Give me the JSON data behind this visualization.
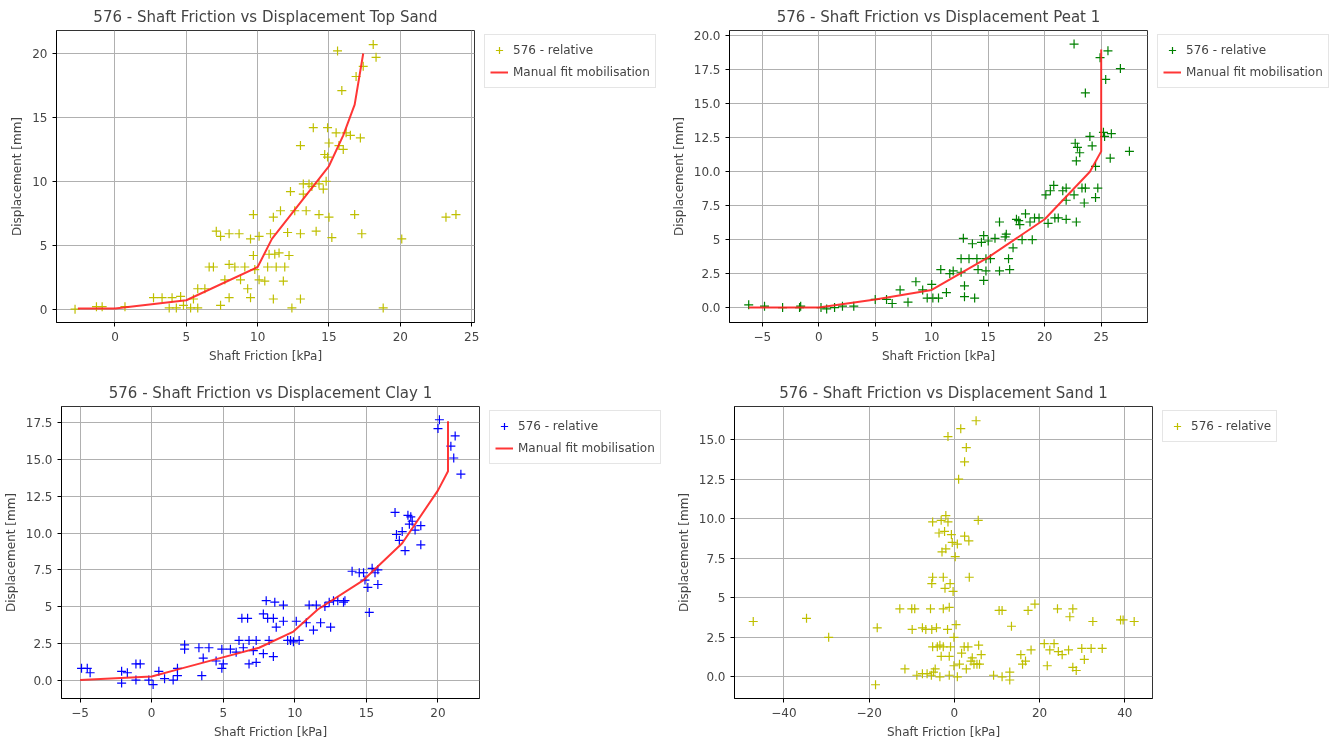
{
  "chart_data": [
    {
      "type": "scatter",
      "title": "576 - Shaft Friction vs Displacement Top Sand",
      "xlabel": "Shaft Friction [kPa]",
      "ylabel": "Displacement [mm]",
      "xlim": [
        -4.1,
        25.2
      ],
      "ylim": [
        -1.04,
        21.8
      ],
      "xticks": [
        0,
        5,
        10,
        15,
        20,
        25
      ],
      "yticks": [
        0,
        5,
        10,
        15,
        20
      ],
      "grid": true,
      "legend": "right",
      "series": [
        {
          "name": "576 - relative",
          "marker": "cross",
          "color": "#bfbf00",
          "x": [
            -2.8,
            -1.3,
            -0.9,
            0.7,
            2.7,
            3.3,
            4.0,
            4.6,
            3.8,
            4.3,
            4.8,
            5.3,
            5.8,
            5.5,
            5.8,
            6.3,
            6.6,
            6.9,
            7.1,
            7.4,
            7.4,
            7.7,
            8.0,
            8.7,
            8.0,
            8.0,
            8.4,
            8.8,
            9.1,
            9.3,
            9.5,
            9.5,
            9.7,
            9.7,
            9.8,
            10.1,
            10.1,
            10.5,
            10.8,
            10.7,
            10.9,
            11.1,
            11.1,
            11.2,
            11.3,
            11.5,
            11.6,
            11.8,
            11.9,
            12.1,
            12.2,
            12.4,
            12.3,
            12.6,
            13.0,
            13.0,
            13.0,
            13.2,
            13.2,
            13.4,
            13.6,
            13.8,
            13.9,
            14.1,
            14.3,
            14.3,
            14.6,
            14.7,
            14.8,
            14.9,
            14.9,
            15.0,
            15.0,
            15.2,
            15.5,
            15.6,
            15.7,
            15.9,
            16.0,
            16.2,
            16.5,
            16.8,
            16.9,
            17.2,
            17.3,
            17.4,
            18.1,
            18.3,
            18.8,
            20.1,
            23.2,
            23.9
          ],
          "values": [
            0,
            0.2,
            0.2,
            0.2,
            0.9,
            0.9,
            0.9,
            1.0,
            0.1,
            0.1,
            0.3,
            0.1,
            0.1,
            0.8,
            1.6,
            1.6,
            3.3,
            3.3,
            6.1,
            5.7,
            0.3,
            2.3,
            5.9,
            5.9,
            0.9,
            3.5,
            3.3,
            2.3,
            3.3,
            1.6,
            0.9,
            5.5,
            7.4,
            4.2,
            3.1,
            5.7,
            2.3,
            2.2,
            4.3,
            3.3,
            5.9,
            7.2,
            0.8,
            4.3,
            3.3,
            4.4,
            7.7,
            2.2,
            3.3,
            6.0,
            4.2,
            0.1,
            9.2,
            7.7,
            5.9,
            0.8,
            12.8,
            9.0,
            9.8,
            7.7,
            9.8,
            9.6,
            14.2,
            6.1,
            7.4,
            9.8,
            9.4,
            12.1,
            10.0,
            11.9,
            14.2,
            13.0,
            7.2,
            5.6,
            13.8,
            20.2,
            12.8,
            17.1,
            12.5,
            13.8,
            13.6,
            7.4,
            18.2,
            13.4,
            5.9,
            19.0,
            20.7,
            19.7,
            0.1,
            5.5,
            7.2,
            7.4
          ]
        },
        {
          "name": "Manual fit mobilisation",
          "type": "line",
          "color": "#ff2020",
          "x": [
            -2.6,
            0,
            5,
            10,
            11,
            15,
            16,
            16.8,
            17.4
          ],
          "values": [
            0.05,
            0.05,
            0.7,
            3.3,
            5.5,
            11.2,
            13.6,
            16,
            20
          ]
        }
      ]
    },
    {
      "type": "scatter",
      "title": "576 - Shaft Friction vs Displacement Peat 1",
      "xlabel": "Shaft Friction [kPa]",
      "ylabel": "Displacement [mm]",
      "xlim": [
        -7.9,
        29.1
      ],
      "ylim": [
        -1.1,
        20.4
      ],
      "xticks": [
        {
          "value": -5,
          "label": "−5"
        },
        0,
        5,
        10,
        15,
        20,
        25
      ],
      "yticks": [
        {
          "value": 0,
          "label": "0.0"
        },
        2.5,
        5.0,
        7.5,
        {
          "value": 10,
          "label": "10.0"
        },
        12.5,
        {
          "value": 15,
          "label": "15.0"
        },
        17.5,
        {
          "value": 20,
          "label": "20.0"
        }
      ],
      "grid": true,
      "legend": "right",
      "series": [
        {
          "name": "576 - relative",
          "marker": "cross",
          "color": "#008000",
          "x": [
            -6.2,
            -4.8,
            -3.2,
            -1.7,
            -1.6,
            0.2,
            0.7,
            1.4,
            2.1,
            3.1,
            5.0,
            6.0,
            6.5,
            7.2,
            7.9,
            8.6,
            9.2,
            9.6,
            10.0,
            10.1,
            10.6,
            10.8,
            11.3,
            11.6,
            11.9,
            12.6,
            12.6,
            12.8,
            12.9,
            12.9,
            13.3,
            13.6,
            13.8,
            14.0,
            14.1,
            14.4,
            14.6,
            14.6,
            14.8,
            14.8,
            15.0,
            15.2,
            15.6,
            16.0,
            16.0,
            16.5,
            16.6,
            16.8,
            16.9,
            17.2,
            17.5,
            17.7,
            17.8,
            18.0,
            18.3,
            18.7,
            18.9,
            19.1,
            19.5,
            20.1,
            20.3,
            20.5,
            20.8,
            20.9,
            21.2,
            21.6,
            21.9,
            21.9,
            21.9,
            22.6,
            22.6,
            22.7,
            22.8,
            22.8,
            22.9,
            23.1,
            23.3,
            23.5,
            23.6,
            23.6,
            24.0,
            24.2,
            24.5,
            24.5,
            24.7,
            24.9,
            25.2,
            25.3,
            25.4,
            25.6,
            25.8,
            25.9,
            26.7,
            27.5
          ],
          "values": [
            0.2,
            0.1,
            0,
            0,
            0.1,
            0,
            -0.1,
            0,
            0.1,
            0.1,
            0.6,
            0.6,
            0.3,
            1.3,
            0.4,
            1.9,
            1.3,
            0.7,
            1.7,
            0.7,
            0.7,
            2.8,
            1.1,
            2.5,
            2.7,
            2.6,
            3.6,
            5.1,
            1.6,
            0.8,
            3.6,
            4.7,
            0.7,
            3.6,
            2.8,
            4.8,
            2.0,
            5.3,
            3.6,
            2.7,
            4.9,
            3.6,
            5.1,
            6.3,
            2.7,
            5.2,
            5.4,
            3.6,
            2.8,
            4.4,
            6.5,
            6.4,
            6.1,
            5.0,
            6.9,
            6.3,
            5.0,
            6.6,
            6.6,
            8.3,
            6.2,
            8.6,
            9.0,
            6.6,
            6.6,
            8.6,
            7.9,
            8.8,
            6.5,
            8.3,
            19.4,
            12.1,
            10.8,
            6.3,
            11.8,
            11.4,
            8.8,
            7.7,
            15.8,
            8.8,
            12.6,
            11.9,
            8.1,
            10.4,
            8.8,
            18.4,
            12.9,
            12.6,
            16.8,
            18.9,
            11.0,
            12.8,
            17.6,
            11.5
          ]
        },
        {
          "name": "Manual fit mobilisation",
          "type": "line",
          "color": "#ff2020",
          "x": [
            -6.2,
            0,
            5,
            10,
            15,
            20,
            24,
            25,
            25
          ],
          "values": [
            0,
            0,
            0.6,
            1.3,
            3.7,
            6.5,
            10,
            11.5,
            19
          ]
        }
      ]
    },
    {
      "type": "scatter",
      "title": "576 - Shaft Friction vs Displacement Clay 1",
      "xlabel": "Shaft Friction [kPa]",
      "ylabel": "Displacement [mm]",
      "xlim": [
        -6.3,
        22.9
      ],
      "ylim": [
        -1.25,
        18.6
      ],
      "xticks": [
        {
          "value": -5,
          "label": "−5"
        },
        0,
        5,
        10,
        15,
        20
      ],
      "yticks": [
        {
          "value": 0,
          "label": "0.0"
        },
        2.5,
        5.0,
        7.5,
        {
          "value": 10,
          "label": "10.0"
        },
        12.5,
        {
          "value": 15,
          "label": "15.0"
        },
        17.5
      ],
      "grid": true,
      "legend": "right",
      "series": [
        {
          "name": "576 - relative",
          "marker": "cross",
          "color": "#0000ff",
          "x": [
            -4.9,
            -4.5,
            -4.3,
            -2.1,
            -2.1,
            -1.7,
            -1.1,
            -1.1,
            -0.8,
            -0.2,
            0.1,
            0.5,
            0.9,
            1.5,
            1.8,
            1.8,
            2.3,
            2.3,
            3.3,
            3.5,
            3.6,
            4.0,
            4.5,
            4.9,
            4.9,
            5.0,
            5.5,
            5.9,
            6.1,
            6.3,
            6.4,
            6.7,
            6.8,
            6.8,
            7.1,
            7.3,
            7.3,
            7.8,
            7.8,
            8.0,
            8.1,
            8.2,
            8.5,
            8.5,
            8.6,
            8.7,
            9.2,
            9.2,
            9.5,
            9.7,
            9.9,
            10.1,
            10.3,
            10.8,
            11.0,
            11.3,
            11.5,
            11.8,
            12.1,
            12.4,
            12.5,
            12.7,
            13.0,
            13.4,
            13.5,
            14.0,
            14.5,
            14.8,
            14.9,
            15.1,
            15.2,
            15.4,
            15.6,
            15.8,
            15.8,
            17.0,
            17.1,
            17.3,
            17.5,
            17.7,
            17.9,
            18.0,
            18.1,
            18.2,
            18.4,
            18.8,
            18.8,
            20.0,
            20.1,
            20.9,
            21.1,
            21.2,
            21.6
          ],
          "values": [
            0.8,
            0.8,
            0.5,
            0.6,
            -0.2,
            0.5,
            0,
            1.1,
            1.1,
            0,
            -0.3,
            0.6,
            0.1,
            0,
            0.3,
            0.8,
            2.4,
            2.1,
            2.2,
            0.3,
            1.5,
            2.2,
            1.3,
            0.8,
            2.1,
            1.1,
            2.1,
            1.9,
            2.7,
            4.2,
            2.2,
            4.2,
            2.7,
            1.1,
            2.0,
            2.7,
            1.2,
            4.5,
            1.8,
            5.4,
            4.2,
            2.7,
            4.2,
            1.6,
            5.3,
            3.6,
            5.1,
            4.0,
            2.7,
            2.7,
            2.6,
            4.0,
            2.7,
            3.9,
            5.1,
            3.4,
            5.1,
            3.9,
            5.0,
            5.3,
            3.6,
            5.4,
            5.4,
            5.3,
            5.4,
            7.4,
            7.3,
            7.3,
            6.8,
            6.3,
            4.6,
            7.6,
            7.3,
            6.5,
            7.5,
            11.4,
            9.9,
            9.5,
            10.1,
            8.8,
            11.2,
            10.6,
            11.1,
            10.8,
            10.2,
            10.5,
            9.2,
            17.1,
            17.7,
            15.9,
            15.1,
            16.6,
            14.0
          ]
        },
        {
          "name": "Manual fit mobilisation",
          "type": "line",
          "color": "#ff2020",
          "x": [
            -5,
            0,
            2.1,
            7.5,
            9.9,
            11.6,
            14.8,
            17.5,
            20,
            20.7,
            20.7
          ],
          "values": [
            0,
            0.25,
            0.8,
            2.2,
            3.3,
            4.8,
            6.8,
            9.3,
            12.9,
            14.2,
            17.6
          ]
        }
      ]
    },
    {
      "type": "scatter",
      "title": "576 - Shaft Friction vs Displacement Sand 1",
      "xlabel": "Shaft Friction [kPa]",
      "ylabel": "Displacement [mm]",
      "xlim": [
        -51.6,
        46.5
      ],
      "ylim": [
        -1.37,
        17.1
      ],
      "xticks": [
        {
          "value": -40,
          "label": "−40"
        },
        {
          "value": -20,
          "label": "−20"
        },
        0,
        20,
        40
      ],
      "yticks": [
        {
          "value": 0,
          "label": "0.0"
        },
        2.5,
        5.0,
        7.5,
        {
          "value": 10,
          "label": "10.0"
        },
        12.5,
        {
          "value": 15,
          "label": "15.0"
        }
      ],
      "grid": true,
      "legend": "right",
      "series": [
        {
          "name": "576 - relative",
          "marker": "cross",
          "color": "#bfbf00",
          "x": [
            -47.2,
            -34.7,
            -29.5,
            -18.5,
            -18.1,
            -12.8,
            -11.6,
            -10.0,
            -9.9,
            -9.3,
            -8.8,
            -7.5,
            -7.5,
            -6.7,
            -6.4,
            -5.6,
            -5.3,
            -5.1,
            -5.4,
            -5.1,
            -5.3,
            -4.9,
            -4.5,
            -5.1,
            -4.0,
            -4.2,
            -3.6,
            -3.4,
            -3.1,
            -3.4,
            -2.9,
            -3.1,
            -2.6,
            -2.6,
            -2.6,
            -2.3,
            -2.2,
            -2.0,
            -2.0,
            -1.6,
            -1.5,
            -1.5,
            -1.2,
            -1.2,
            -1.2,
            -1.0,
            -0.9,
            -0.7,
            -0.5,
            -0.3,
            -0.1,
            -0.1,
            0.2,
            0.4,
            0.7,
            0.7,
            1.0,
            1.2,
            1.5,
            1.7,
            2.3,
            2.4,
            2.4,
            2.8,
            2.8,
            3.2,
            3.4,
            3.5,
            3.9,
            4.2,
            4.6,
            5.1,
            5.3,
            5.6,
            5.7,
            5.9,
            6.3,
            9.2,
            10.5,
            11.2,
            11.2,
            13.0,
            13.0,
            13.4,
            15.6,
            16.0,
            16.7,
            17.3,
            18.0,
            18.9,
            21.1,
            21.8,
            22.4,
            23.4,
            24.2,
            24.4,
            25.3,
            26.8,
            27.1,
            27.8,
            27.8,
            28.6,
            29.9,
            30.5,
            32.1,
            32.5,
            34.7,
            39.0,
            39.6,
            42.2
          ],
          "values": [
            3.5,
            3.7,
            2.5,
            -0.5,
            3.1,
            4.3,
            0.5,
            4.3,
            3.0,
            4.3,
            0.1,
            0.2,
            3.1,
            3.0,
            0.2,
            4.3,
            3.0,
            1.9,
            0.1,
            6.3,
            5.9,
            0.3,
            0.5,
            9.8,
            1.9,
            3.1,
            9.1,
            2.0,
            1.3,
            0,
            7.9,
            9.9,
            4.3,
            6.3,
            1.9,
            9.2,
            5.6,
            10.2,
            8.1,
            3.0,
            9.8,
            15.2,
            4.4,
            1.3,
            0.1,
            5.9,
            1.9,
            9.0,
            8.5,
            5.4,
            2.5,
            0.7,
            7.6,
            3.3,
            8.4,
            0,
            12.5,
            0.8,
            15.7,
            1.5,
            1.9,
            13.6,
            8.9,
            14.5,
            0.5,
            1.9,
            8.6,
            6.3,
            1.0,
            1.2,
            0.8,
            16.2,
            0.8,
            9.9,
            2.0,
            0.8,
            1.4,
            0.1,
            4.2,
            4.2,
            0,
            0.3,
            -0.2,
            3.2,
            1.4,
            0.8,
            1.0,
            4.2,
            1.7,
            4.6,
            2.1,
            0.7,
            1.7,
            2.1,
            4.3,
            1.6,
            1.4,
            1.7,
            3.8,
            4.3,
            0.6,
            0.4,
            1.8,
            1.1,
            1.8,
            3.5,
            1.8,
            3.6,
            3.6,
            3.5
          ]
        }
      ]
    }
  ]
}
